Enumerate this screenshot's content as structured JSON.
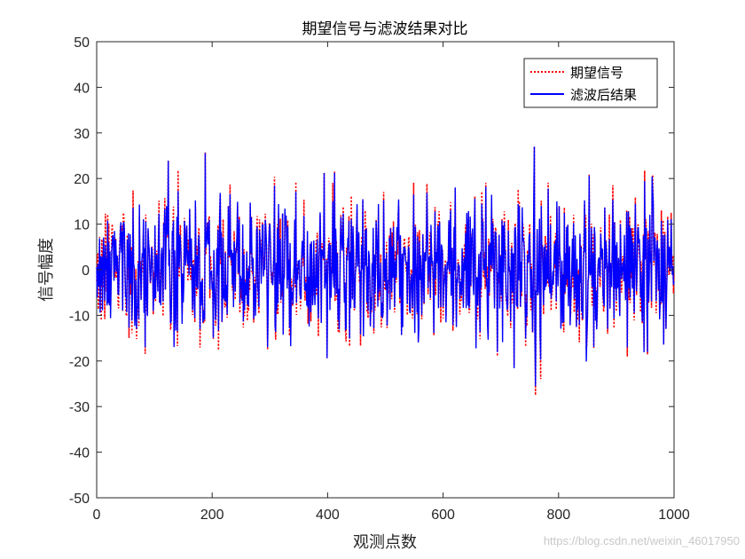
{
  "chart_data": {
    "type": "line",
    "title": "期望信号与滤波结果对比",
    "xlabel": "观测点数",
    "ylabel": "信号幅度",
    "xlim": [
      0,
      1000
    ],
    "ylim": [
      -50,
      50
    ],
    "xticks": [
      0,
      200,
      400,
      600,
      800,
      1000
    ],
    "yticks": [
      50,
      40,
      30,
      20,
      10,
      0,
      -10,
      -20,
      -30,
      -40,
      -50
    ],
    "grid": false,
    "legend_position": "top-right",
    "noise_std": 8,
    "series": [
      {
        "name": "期望信号",
        "color": "#ff0000",
        "style": "dotted"
      },
      {
        "name": "滤波后结果",
        "color": "#0000ff",
        "style": "solid"
      }
    ],
    "notable_points": {
      "max_value": 27,
      "max_x": 758,
      "min_value": -27.5,
      "min_x": 760
    }
  },
  "watermark": "https://blog.csdn.net/weixin_46017950"
}
